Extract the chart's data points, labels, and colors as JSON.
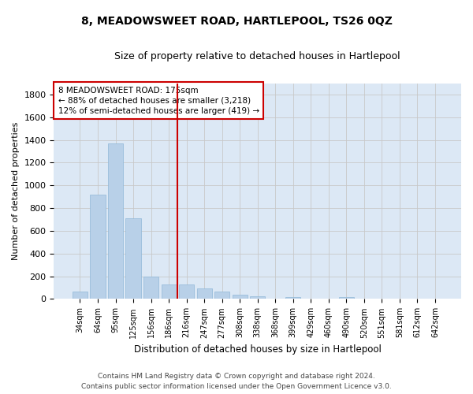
{
  "title_line1": "8, MEADOWSWEET ROAD, HARTLEPOOL, TS26 0QZ",
  "title_line2": "Size of property relative to detached houses in Hartlepool",
  "xlabel": "Distribution of detached houses by size in Hartlepool",
  "ylabel": "Number of detached properties",
  "categories": [
    "34sqm",
    "64sqm",
    "95sqm",
    "125sqm",
    "156sqm",
    "186sqm",
    "216sqm",
    "247sqm",
    "277sqm",
    "308sqm",
    "338sqm",
    "368sqm",
    "399sqm",
    "429sqm",
    "460sqm",
    "490sqm",
    "520sqm",
    "551sqm",
    "581sqm",
    "612sqm",
    "642sqm"
  ],
  "values": [
    65,
    920,
    1370,
    710,
    195,
    130,
    125,
    95,
    65,
    35,
    25,
    5,
    20,
    5,
    5,
    20,
    5,
    5,
    5,
    5,
    5
  ],
  "bar_color": "#b8d0e8",
  "bar_edge_color": "#90b8d8",
  "vline_x_index": 5,
  "vline_color": "#cc0000",
  "annotation_line1": "8 MEADOWSWEET ROAD: 175sqm",
  "annotation_line2": "← 88% of detached houses are smaller (3,218)",
  "annotation_line3": "12% of semi-detached houses are larger (419) →",
  "annotation_box_color": "white",
  "annotation_box_edge_color": "#cc0000",
  "ylim": [
    0,
    1900
  ],
  "yticks": [
    0,
    200,
    400,
    600,
    800,
    1000,
    1200,
    1400,
    1600,
    1800
  ],
  "footer_line1": "Contains HM Land Registry data © Crown copyright and database right 2024.",
  "footer_line2": "Contains public sector information licensed under the Open Government Licence v3.0.",
  "grid_color": "#c8c8c8",
  "background_color": "#dce8f5",
  "fig_width": 6.0,
  "fig_height": 5.0,
  "dpi": 100
}
